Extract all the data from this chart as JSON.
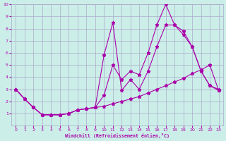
{
  "xlabel": "Windchill (Refroidissement éolien,°C)",
  "bg_color": "#cceee8",
  "grid_color": "#aaaacc",
  "line_color": "#aa00aa",
  "xlim": [
    -0.5,
    23.5
  ],
  "ylim": [
    0,
    10
  ],
  "xticks": [
    0,
    1,
    2,
    3,
    4,
    5,
    6,
    7,
    8,
    9,
    10,
    11,
    12,
    13,
    14,
    15,
    16,
    17,
    18,
    19,
    20,
    21,
    22,
    23
  ],
  "yticks": [
    1,
    2,
    3,
    4,
    5,
    6,
    7,
    8,
    9,
    10
  ],
  "series1_x": [
    0,
    1,
    2,
    3,
    4,
    5,
    6,
    7,
    8,
    9,
    10,
    11,
    12,
    13,
    14,
    15,
    16,
    17,
    18,
    19,
    20,
    21,
    22,
    23
  ],
  "series1_y": [
    3.0,
    2.2,
    1.5,
    0.9,
    0.9,
    0.9,
    1.0,
    1.3,
    1.4,
    1.5,
    2.5,
    5.0,
    3.8,
    4.5,
    4.2,
    6.0,
    8.3,
    10.0,
    8.3,
    7.8,
    6.5,
    4.5,
    3.3,
    2.9
  ],
  "series2_x": [
    0,
    1,
    2,
    3,
    4,
    5,
    6,
    7,
    8,
    9,
    10,
    11,
    12,
    13,
    14,
    15,
    16,
    17,
    18,
    19,
    20,
    21,
    22,
    23
  ],
  "series2_y": [
    3.0,
    2.2,
    1.5,
    0.9,
    0.9,
    0.9,
    1.0,
    1.3,
    1.4,
    1.5,
    5.8,
    8.5,
    2.9,
    3.8,
    3.0,
    4.5,
    6.5,
    8.3,
    8.3,
    7.5,
    6.5,
    4.5,
    3.3,
    3.0
  ],
  "series3_x": [
    0,
    1,
    2,
    3,
    4,
    5,
    6,
    7,
    8,
    9,
    10,
    11,
    12,
    13,
    14,
    15,
    16,
    17,
    18,
    19,
    20,
    21,
    22,
    23
  ],
  "series3_y": [
    3.0,
    2.2,
    1.5,
    0.9,
    0.9,
    0.9,
    1.0,
    1.3,
    1.4,
    1.5,
    1.6,
    1.8,
    2.0,
    2.2,
    2.4,
    2.7,
    3.0,
    3.3,
    3.6,
    3.9,
    4.3,
    4.6,
    5.0,
    2.9
  ]
}
